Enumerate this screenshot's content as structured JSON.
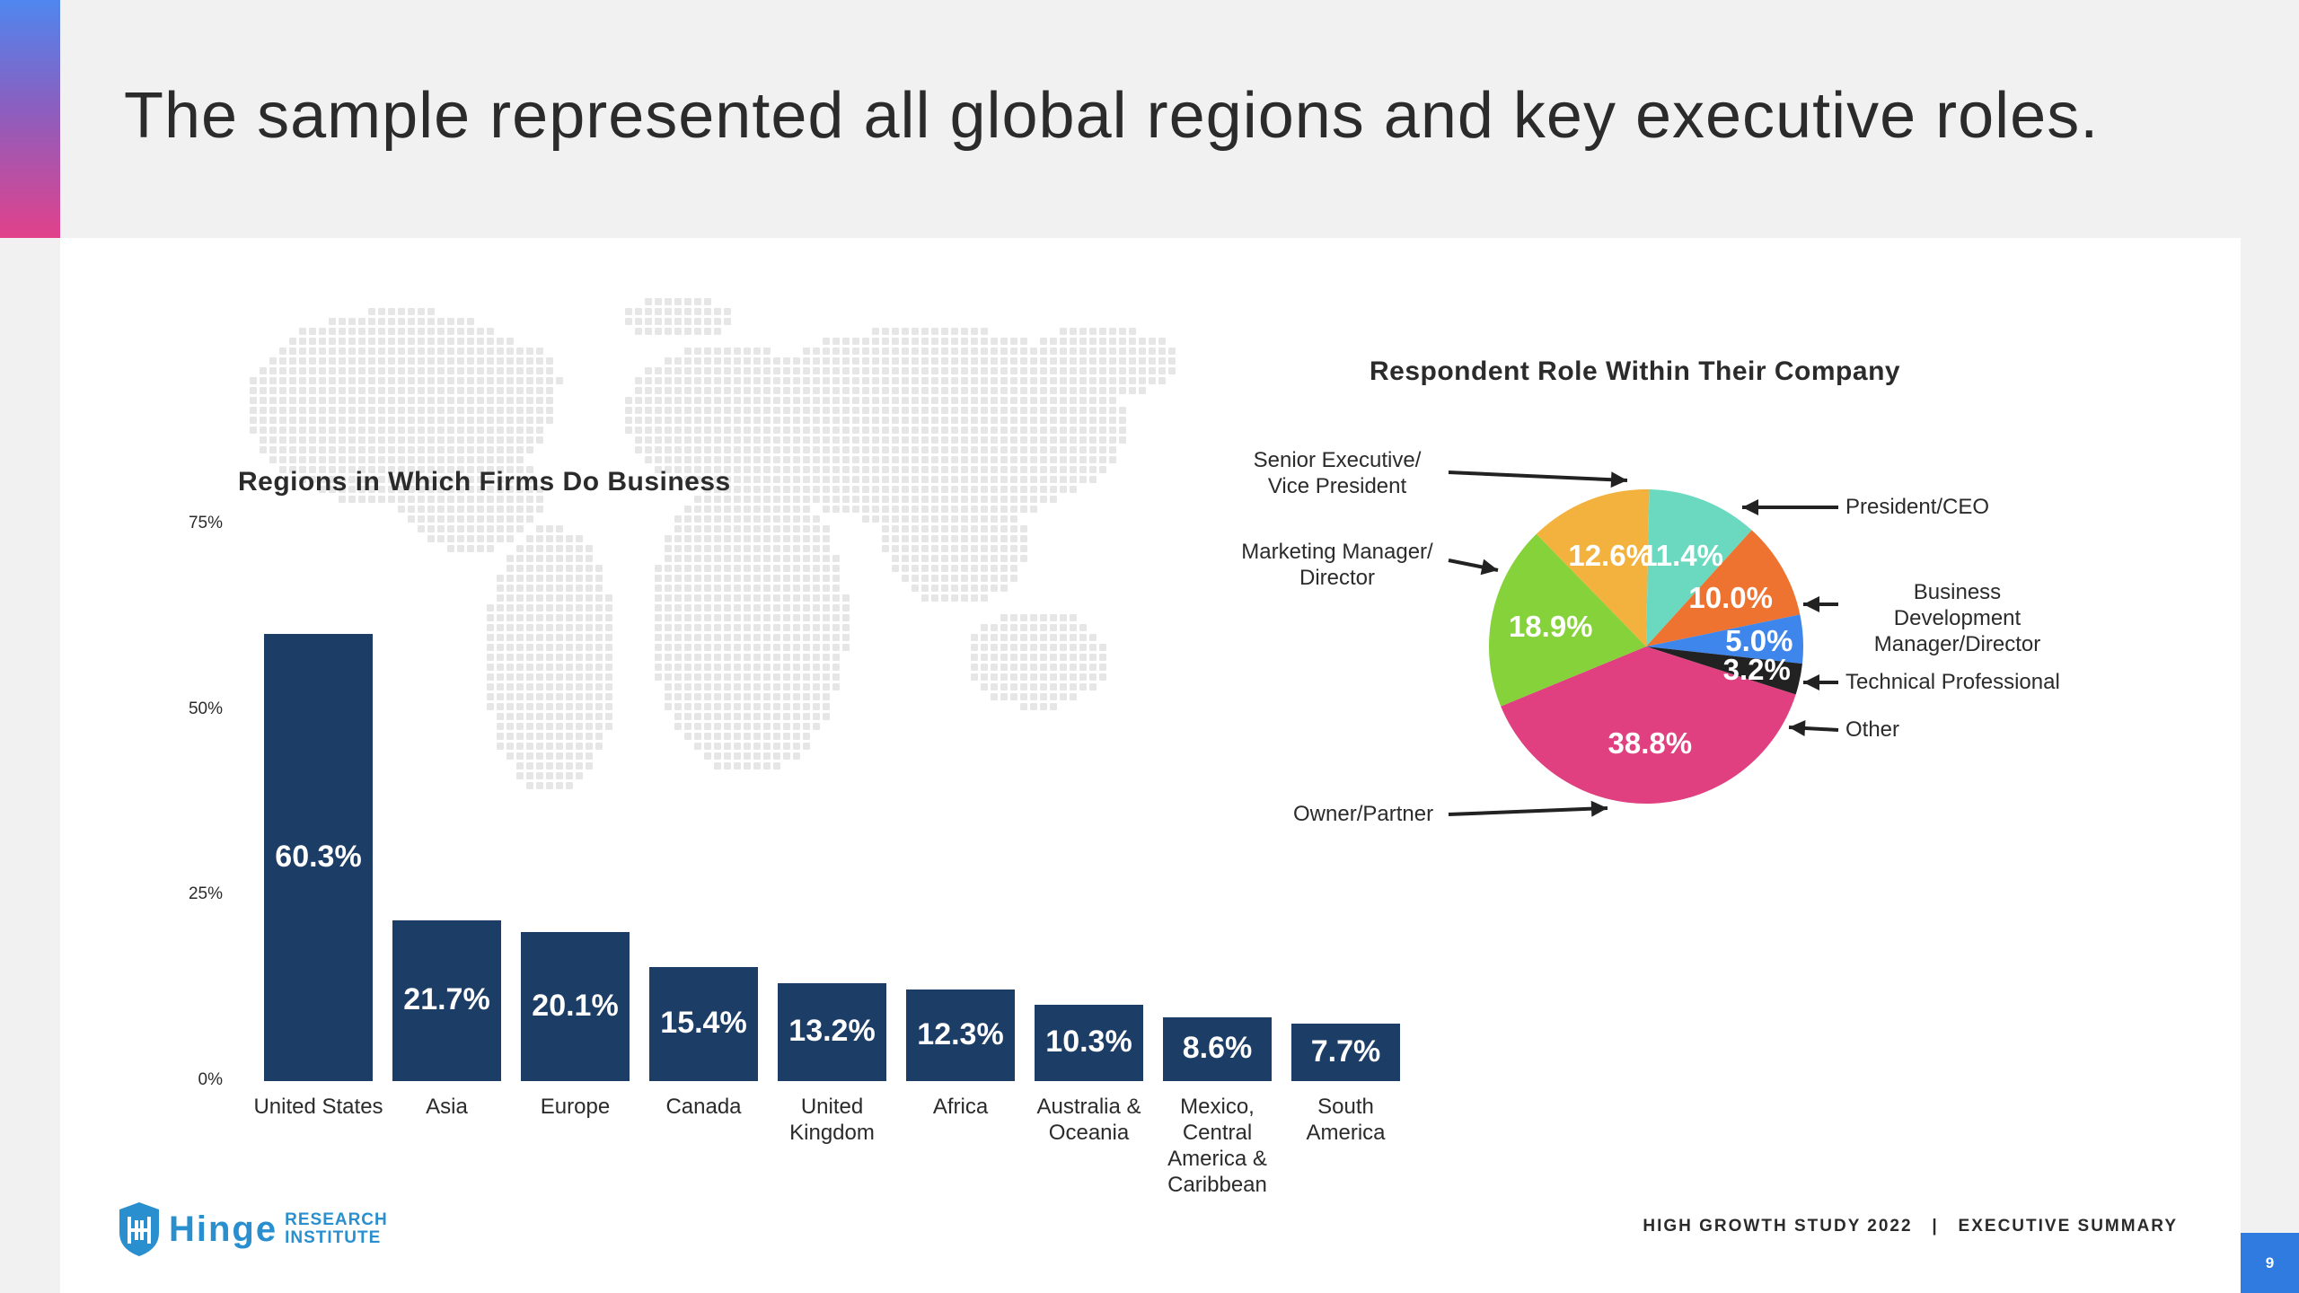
{
  "page": {
    "title": "The sample represented all global regions and key executive roles.",
    "footer": "HIGH GROWTH STUDY 2022   |   EXECUTIVE SUMMARY",
    "page_number": "9",
    "logo": {
      "word": "Hinge",
      "sub_line1": "RESEARCH",
      "sub_line2": "INSTITUTE"
    }
  },
  "colors": {
    "bar": "#1c3d66",
    "accent_top": "#4f86ee",
    "accent_bottom": "#e2418a",
    "page_number_bg": "#2f7be0"
  },
  "chart_data": [
    {
      "type": "bar",
      "title": "Regions in Which Firms Do Business",
      "categories": [
        "United States",
        "Asia",
        "Europe",
        "Canada",
        "United\nKingdom",
        "Africa",
        "Australia &\nOceania",
        "Mexico,\nCentral\nAmerica &\nCaribbean",
        "South\nAmerica"
      ],
      "values": [
        60.3,
        21.7,
        20.1,
        15.4,
        13.2,
        12.3,
        10.3,
        8.6,
        7.7
      ],
      "value_labels": [
        "60.3%",
        "21.7%",
        "20.1%",
        "15.4%",
        "13.2%",
        "12.3%",
        "10.3%",
        "8.6%",
        "7.7%"
      ],
      "yticks": [
        "0%",
        "25%",
        "50%",
        "75%"
      ],
      "ylim": [
        0,
        75
      ],
      "grid": false,
      "color": "#1c3d66"
    },
    {
      "type": "pie",
      "title": "Respondent Role Within Their Company",
      "slices": [
        {
          "label": "President/CEO",
          "value": 11.4,
          "value_label": "11.4%",
          "color": "#6ad9c0"
        },
        {
          "label": "Business Development\nManager/Director",
          "value": 10.0,
          "value_label": "10.0%",
          "color": "#ee7330"
        },
        {
          "label": "Technical Professional",
          "value": 5.0,
          "value_label": "5.0%",
          "color": "#3e86ec"
        },
        {
          "label": "Other",
          "value": 3.2,
          "value_label": "3.2%",
          "color": "#222222"
        },
        {
          "label": "Owner/Partner",
          "value": 38.8,
          "value_label": "38.8%",
          "color": "#e0407f"
        },
        {
          "label": "Marketing Manager/\nDirector",
          "value": 18.9,
          "value_label": "18.9%",
          "color": "#86d23a"
        },
        {
          "label": "Senior Executive/\nVice President",
          "value": 12.6,
          "value_label": "12.6%",
          "color": "#f3b23d"
        }
      ]
    }
  ]
}
